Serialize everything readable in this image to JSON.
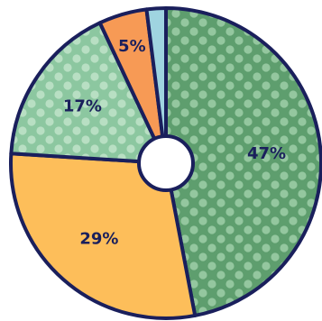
{
  "chart_data": {
    "type": "pie",
    "style": "donut with small white center hole, dark navy outlines, polka-dot pattern on green slices",
    "slices": [
      {
        "label": "47%",
        "value": 47,
        "color": "#5e9e6e",
        "pattern": "dots"
      },
      {
        "label": "29%",
        "value": 29,
        "color": "#fdbe5a",
        "pattern": "none"
      },
      {
        "label": "17%",
        "value": 17,
        "color": "#8cc7a0",
        "pattern": "dots"
      },
      {
        "label": "5%",
        "value": 5,
        "color": "#f79a55",
        "pattern": "none"
      },
      {
        "label": "",
        "value": 2,
        "color": "#9fd4e0",
        "pattern": "none"
      }
    ],
    "start_angle_deg": 0,
    "direction": "clockwise",
    "outline_color": "#1a1f5c",
    "label_color": "#1a1f5c",
    "legend": "none"
  }
}
